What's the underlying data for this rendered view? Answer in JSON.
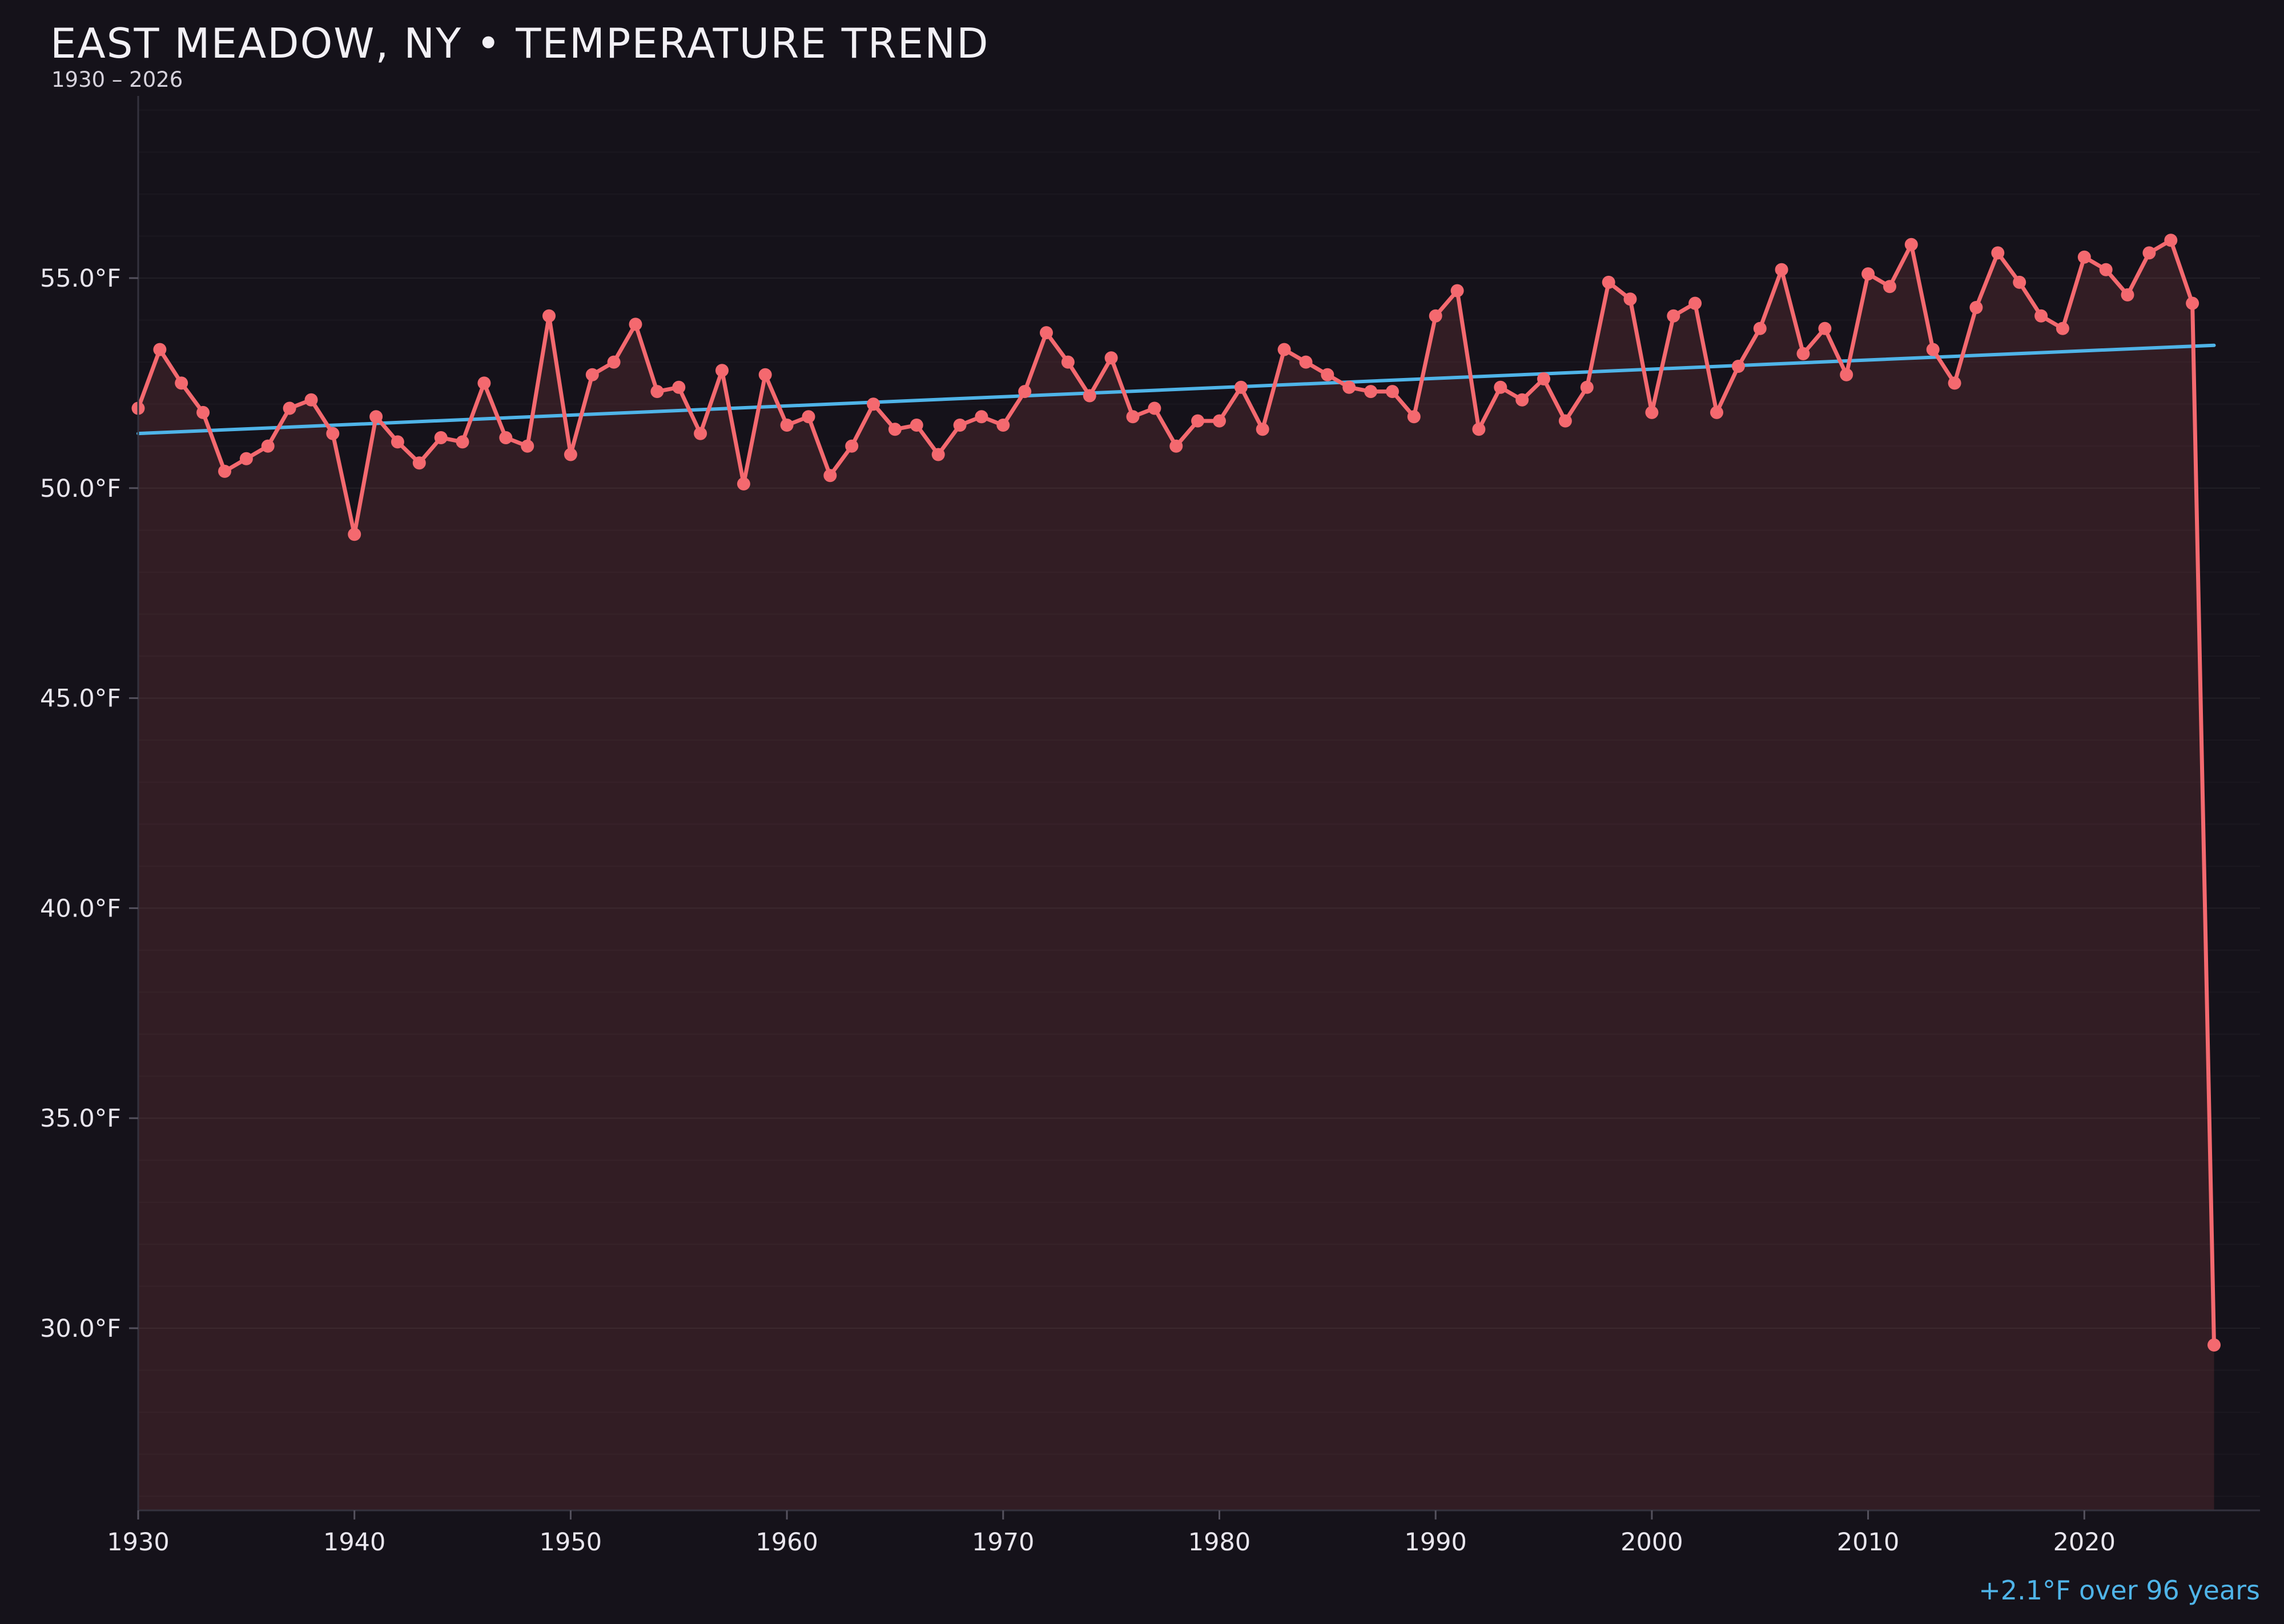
{
  "header": {
    "title": "EAST MEADOW, NY • TEMPERATURE TREND",
    "subtitle": "1930 – 2026"
  },
  "footer": {
    "trend_note": "+2.1°F over 96 years"
  },
  "colors": {
    "background": "#15121a",
    "series_line": "#f4696f",
    "area_fill": "rgba(244,105,111,0.13)",
    "trend_line": "#4fb4e8",
    "annotation_text": "#4fb4e8",
    "axis_spine": "#34323e",
    "tick_mark": "#55525e",
    "tick_label": "#e9e6ee",
    "grid_minor": "rgba(255,255,255,0.028)",
    "grid_major": "rgba(255,255,255,0.055)"
  },
  "chart_data": {
    "type": "line",
    "title": "EAST MEADOW, NY • TEMPERATURE TREND",
    "subtitle": "1930 – 2026",
    "xlabel": "",
    "ylabel": "°F",
    "legend_position": "none",
    "grid": "minor horizontal 1°F, very faint",
    "x_start_year": 1930,
    "x_end_year": 2026,
    "years": [
      1930,
      1931,
      1932,
      1933,
      1934,
      1935,
      1936,
      1937,
      1938,
      1939,
      1940,
      1941,
      1942,
      1943,
      1944,
      1945,
      1946,
      1947,
      1948,
      1949,
      1950,
      1951,
      1952,
      1953,
      1954,
      1955,
      1956,
      1957,
      1958,
      1959,
      1960,
      1961,
      1962,
      1963,
      1964,
      1965,
      1966,
      1967,
      1968,
      1969,
      1970,
      1971,
      1972,
      1973,
      1974,
      1975,
      1976,
      1977,
      1978,
      1979,
      1980,
      1981,
      1982,
      1983,
      1984,
      1985,
      1986,
      1987,
      1988,
      1989,
      1990,
      1991,
      1992,
      1993,
      1994,
      1995,
      1996,
      1997,
      1998,
      1999,
      2000,
      2001,
      2002,
      2003,
      2004,
      2005,
      2006,
      2007,
      2008,
      2009,
      2010,
      2011,
      2012,
      2013,
      2014,
      2015,
      2016,
      2017,
      2018,
      2019,
      2020,
      2021,
      2022,
      2023,
      2024,
      2025,
      2026
    ],
    "series": [
      {
        "name": "annual-mean-temperature-F",
        "values": [
          51.9,
          53.3,
          52.5,
          51.8,
          50.4,
          50.7,
          51.0,
          51.9,
          52.1,
          51.3,
          48.9,
          51.7,
          51.1,
          50.6,
          51.2,
          51.1,
          52.5,
          51.2,
          51.0,
          54.1,
          50.8,
          52.7,
          53.0,
          53.9,
          52.3,
          52.4,
          51.3,
          52.8,
          50.1,
          52.7,
          51.5,
          51.7,
          50.3,
          51.0,
          52.0,
          51.4,
          51.5,
          50.8,
          51.5,
          51.7,
          51.5,
          52.3,
          53.7,
          53.0,
          52.2,
          53.1,
          51.7,
          51.9,
          51.0,
          51.6,
          51.6,
          52.4,
          51.4,
          53.3,
          53.0,
          52.7,
          52.4,
          52.3,
          52.3,
          51.7,
          54.1,
          54.7,
          51.4,
          52.4,
          52.1,
          52.6,
          51.6,
          52.4,
          54.9,
          54.5,
          51.8,
          54.1,
          54.4,
          51.8,
          52.9,
          53.8,
          55.2,
          53.2,
          53.8,
          52.7,
          55.1,
          54.8,
          55.8,
          53.3,
          52.5,
          54.3,
          55.6,
          54.9,
          54.1,
          53.8,
          55.5,
          55.2,
          54.6,
          55.6,
          55.9,
          54.4,
          29.6
        ]
      }
    ],
    "trend": {
      "start_year": 1930,
      "end_year": 2026,
      "start_value": 51.3,
      "end_value": 53.4,
      "label": "+2.1°F over 96 years"
    },
    "yticks": [
      30,
      35,
      40,
      45,
      50,
      55
    ],
    "ytick_labels": [
      "30.0°F",
      "35.0°F",
      "40.0°F",
      "45.0°F",
      "50.0°F",
      "55.0°F"
    ],
    "xticks": [
      1930,
      1940,
      1950,
      1960,
      1970,
      1980,
      1990,
      2000,
      2010,
      2020
    ],
    "xtick_labels": [
      "1930",
      "1940",
      "1950",
      "1960",
      "1970",
      "1980",
      "1990",
      "2000",
      "2010",
      "2020"
    ],
    "ylim_visible": [
      25.7,
      59.3
    ]
  }
}
